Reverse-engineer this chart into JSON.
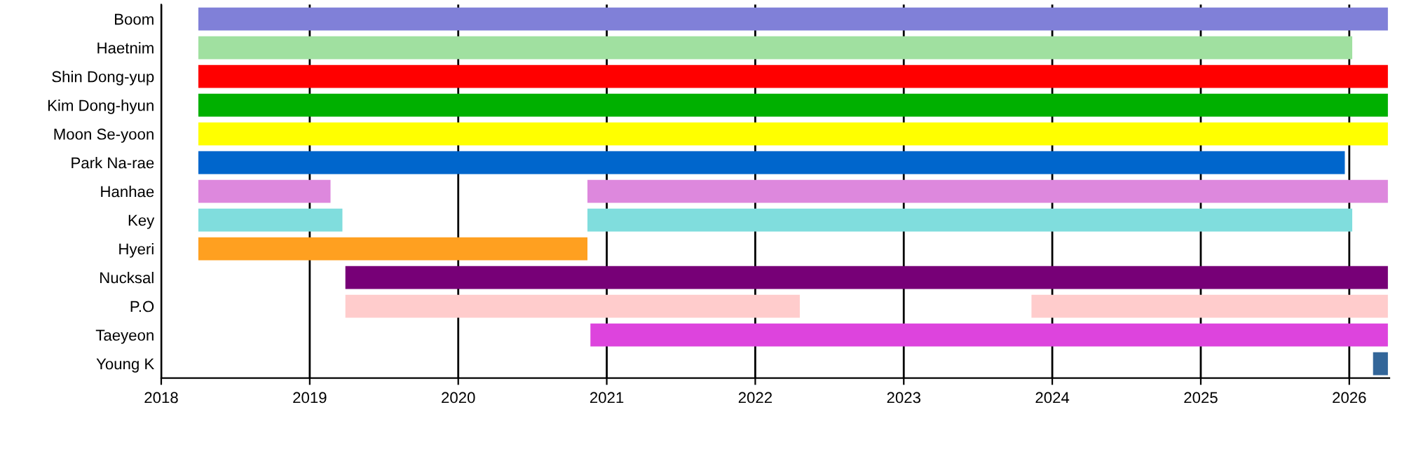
{
  "chart_data": {
    "type": "bar",
    "orientation": "horizontal",
    "categories": [
      "Boom",
      "Haetnim",
      "Shin Dong-yup",
      "Kim Dong-hyun",
      "Moon Se-yoon",
      "Park Na-rae",
      "Hanhae",
      "Key",
      "Hyeri",
      "Nucksal",
      "P.O",
      "Taeyeon",
      "Young K"
    ],
    "series": [
      {
        "base": [
          2018.25,
          2018.25,
          2018.25,
          2018.25,
          2018.25,
          2018.25,
          2018.25,
          2018.25,
          2018.25,
          2019.24,
          2019.24,
          2020.89,
          2026.16
        ],
        "values": [
          8.01,
          7.77,
          8.01,
          8.01,
          8.01,
          7.72,
          0.89,
          0.97,
          2.62,
          7.02,
          3.06,
          5.37,
          0.1
        ],
        "colors": [
          "#8080d8",
          "#a0e0a0",
          "#ff0000",
          "#00b000",
          "#ffff00",
          "#0066cc",
          "#dd88dd",
          "#80dddd",
          "#ffa020",
          "#770077",
          "#ffcccc",
          "#dd44dd",
          "#336699"
        ]
      },
      {
        "base": [
          null,
          null,
          null,
          null,
          null,
          null,
          2020.87,
          2020.87,
          null,
          null,
          2023.86,
          null,
          null
        ],
        "values": [
          null,
          null,
          null,
          null,
          null,
          null,
          5.39,
          5.15,
          null,
          null,
          2.4,
          null,
          null
        ],
        "colors": [
          "#8080d8",
          "#a0e0a0",
          "#ff0000",
          "#00b000",
          "#ffff00",
          "#0066cc",
          "#dd88dd",
          "#80dddd",
          "#ffa020",
          "#770077",
          "#ffcccc",
          "#dd44dd",
          "#336699"
        ]
      }
    ],
    "xlim": [
      2018,
      2026.27
    ],
    "xticks": [
      2018,
      2019,
      2020,
      2021,
      2022,
      2023,
      2024,
      2025,
      2026
    ],
    "grid": "x",
    "legend": false
  }
}
